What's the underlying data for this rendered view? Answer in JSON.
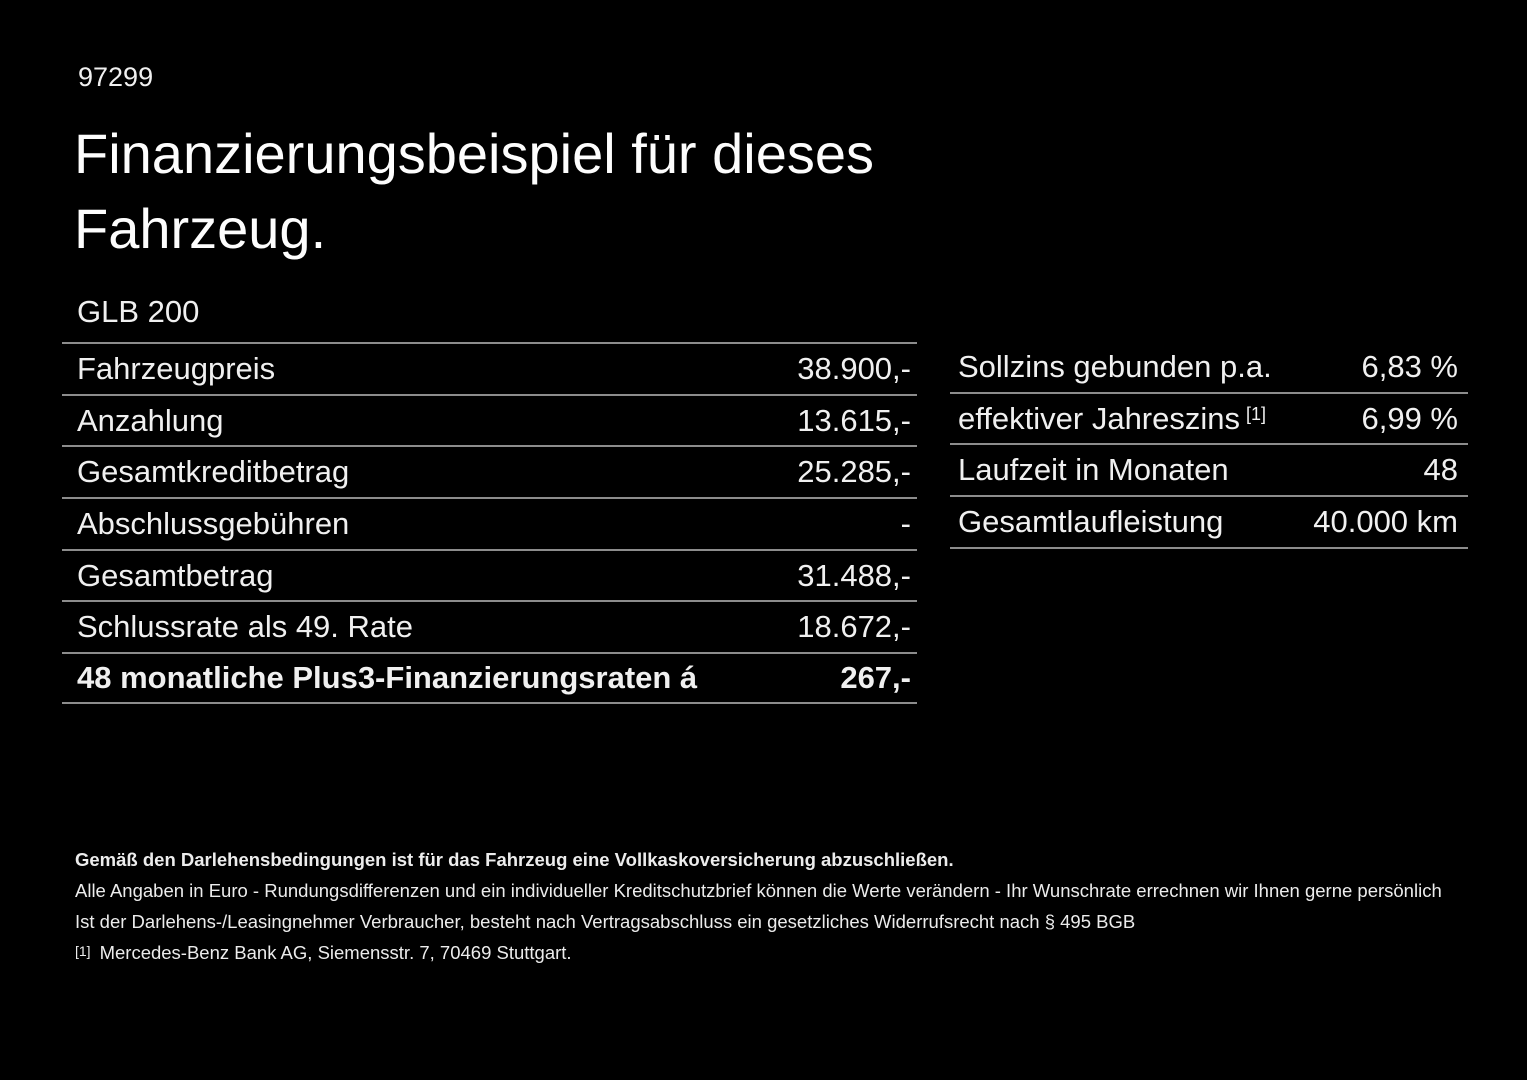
{
  "page": {
    "id_number": "97299",
    "title_line1": "Finanzierungsbeispiel für dieses",
    "title_line2": "Fahrzeug.",
    "model": "GLB 200"
  },
  "finance_table": {
    "rows": [
      {
        "label": "Fahrzeugpreis",
        "value": "38.900,-"
      },
      {
        "label": "Anzahlung",
        "value": "13.615,-"
      },
      {
        "label": "Gesamtkreditbetrag",
        "value": "25.285,-"
      },
      {
        "label": "Abschlussgebühren",
        "value": "-"
      },
      {
        "label": "Gesamtbetrag",
        "value": "31.488,-"
      },
      {
        "label": "Schlussrate als 49. Rate",
        "value": "18.672,-"
      },
      {
        "label": "48 monatliche Plus3-Finanzierungsraten á",
        "value": "267,-"
      }
    ]
  },
  "conditions_table": {
    "rows": [
      {
        "label": "Sollzins gebunden p.a.",
        "marker": "",
        "value": "6,83 %"
      },
      {
        "label": "effektiver Jahreszins",
        "marker": "[1]",
        "value": "6,99 %"
      },
      {
        "label": "Laufzeit in Monaten",
        "marker": "",
        "value": "48"
      },
      {
        "label": "Gesamtlaufleistung",
        "marker": "",
        "value": "40.000 km"
      }
    ]
  },
  "footer": {
    "insurance_note": "Gemäß den Darlehensbedingungen ist für das Fahrzeug eine Vollkaskoversicherung abzuschließen.",
    "disclaimer1": "Alle Angaben in Euro - Rundungsdifferenzen und ein individueller Kreditschutzbrief können die Werte verändern - Ihr Wunschrate errechnen wir Ihnen gerne persönlich",
    "disclaimer2": "Ist der Darlehens-/Leasingnehmer Verbraucher, besteht nach Vertragsabschluss ein gesetzliches Widerrufsrecht nach § 495 BGB",
    "footnote_marker": "[1]",
    "footnote_text": "Mercedes-Benz Bank AG, Siemensstr. 7, 70469 Stuttgart."
  },
  "colors": {
    "background": "#000000",
    "text": "#f0f0f0",
    "divider": "#8c8c8c"
  }
}
